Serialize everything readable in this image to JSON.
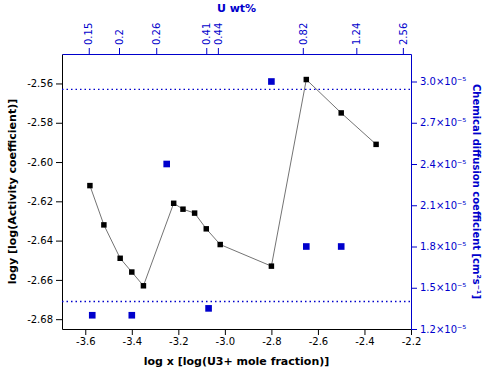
{
  "chart_data": {
    "type": "line",
    "xlabel": "log x [log(U3+ mole fraction)]",
    "ylabel": "logy [log(Activity coefficient)]",
    "y2label": "Chemical diffusion coefficient [cm²s⁻¹]",
    "x2label": "U wt%",
    "xlim": [
      -3.7,
      -2.2
    ],
    "xticks": [
      -3.6,
      -3.4,
      -3.2,
      {
        "value": -3.0,
        "label": "-3.0"
      },
      -2.8,
      -2.6,
      -2.4,
      -2.2
    ],
    "x2lim": [
      -3.7,
      -2.2
    ],
    "x2ticks": [
      {
        "value": -3.585,
        "label": "0.15"
      },
      {
        "value": -3.455,
        "label": "0.2"
      },
      {
        "value": -3.295,
        "label": "0.26"
      },
      {
        "value": -3.08,
        "label": "0.41"
      },
      {
        "value": -3.03,
        "label": "0.44"
      },
      {
        "value": -2.665,
        "label": "0.82"
      },
      {
        "value": -2.435,
        "label": "1.24"
      },
      {
        "value": -2.235,
        "label": "2.56"
      }
    ],
    "ylim": [
      -2.685,
      -2.545
    ],
    "yticks": [
      -2.68,
      -2.66,
      -2.64,
      -2.62,
      {
        "value": -2.6,
        "label": "-2.60"
      },
      -2.58,
      -2.56
    ],
    "y2lim": [
      1.2e-05,
      3.2e-05
    ],
    "y2ticks": [
      {
        "value": 1.2e-05,
        "label": "1.2×10⁻⁵"
      },
      {
        "value": 1.5e-05,
        "label": "1.5×10⁻⁵"
      },
      {
        "value": 1.8e-05,
        "label": "1.8×10⁻⁵"
      },
      {
        "value": 2.1e-05,
        "label": "2.1×10⁻⁵"
      },
      {
        "value": 2.4e-05,
        "label": "2.4×10⁻⁵"
      },
      {
        "value": 2.7e-05,
        "label": "2.7×10⁻⁵"
      },
      {
        "value": 3e-05,
        "label": "3.0×10⁻⁵"
      }
    ],
    "grid": false,
    "series": [
      {
        "type": "line",
        "marker": "square",
        "color": "#000000",
        "x": [
          -3.58,
          -3.52,
          -3.45,
          -3.4,
          -3.35,
          -3.22,
          -3.18,
          -3.13,
          -3.08,
          -3.02,
          -2.8,
          -2.65,
          -2.5,
          -2.35
        ],
        "values": [
          -2.612,
          -2.632,
          -2.649,
          -2.656,
          -2.663,
          -2.621,
          -2.624,
          -2.626,
          -2.634,
          -2.642,
          -2.653,
          -2.558,
          -2.575,
          -2.591
        ]
      },
      {
        "type": "scatter",
        "marker": "square",
        "color": "#0000cc",
        "axis": "y2",
        "x": [
          -3.57,
          -3.4,
          -3.25,
          -3.07,
          -2.8,
          -2.65,
          -2.5
        ],
        "values": [
          1.3e-05,
          1.3e-05,
          2.4e-05,
          1.35e-05,
          3e-05,
          1.8e-05,
          1.8e-05
        ]
      }
    ],
    "hlines": {
      "values": [
        -2.563,
        -2.671
      ],
      "color": "#0000cc",
      "line_style": "dotted"
    }
  }
}
